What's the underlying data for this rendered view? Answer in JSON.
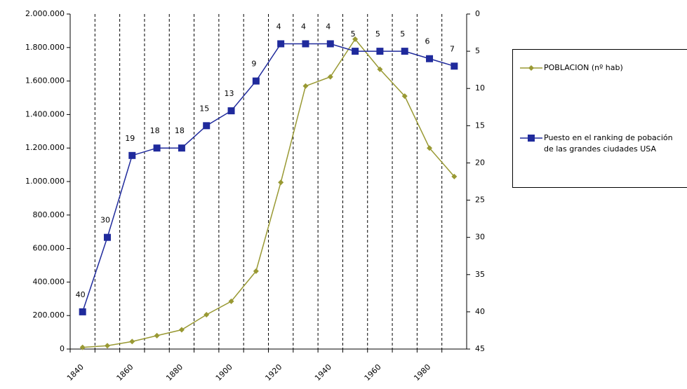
{
  "chart_data": {
    "type": "line",
    "categories": [
      "1840",
      null,
      "1860",
      null,
      "1880",
      null,
      "1900",
      null,
      "1920",
      null,
      "1940",
      null,
      "1960",
      null,
      "1980",
      null
    ],
    "series": [
      {
        "name": "POBLACION (nº hab)",
        "color": "#999933",
        "marker": "diamond",
        "axis": "y",
        "values": [
          10000,
          20000,
          45000,
          80000,
          115000,
          205000,
          285000,
          465000,
          995000,
          1570000,
          1625000,
          1850000,
          1670000,
          1510000,
          1200000,
          1030000
        ]
      },
      {
        "name": "Puesto en el ranking de pobación de las grandes ciudades USA",
        "color": "#1f2a9c",
        "marker": "square",
        "axis": "y2",
        "data_labels": true,
        "values": [
          40,
          30,
          19,
          18,
          18,
          15,
          13,
          9,
          4,
          4,
          4,
          5,
          5,
          5,
          6,
          7
        ]
      }
    ],
    "ylim": [
      0,
      2000000
    ],
    "yticks": [
      0,
      {
        "value": 200000,
        "label": "200.000"
      },
      {
        "value": 400000,
        "label": "400.000"
      },
      {
        "value": 600000,
        "label": "600.000"
      },
      {
        "value": 800000,
        "label": "800.000"
      },
      {
        "value": 1000000,
        "label": "1.000.000"
      },
      {
        "value": 1200000,
        "label": "1.200.000"
      },
      {
        "value": 1400000,
        "label": "1.400.000"
      },
      {
        "value": 1600000,
        "label": "1.600.000"
      },
      {
        "value": 1800000,
        "label": "1.800.000"
      },
      {
        "value": 2000000,
        "label": "2.000.000"
      }
    ],
    "y2lim": [
      45,
      0
    ],
    "y2ticks": [
      0,
      5,
      10,
      15,
      20,
      25,
      30,
      35,
      40,
      45
    ],
    "grid": true,
    "legend_position": "right"
  }
}
